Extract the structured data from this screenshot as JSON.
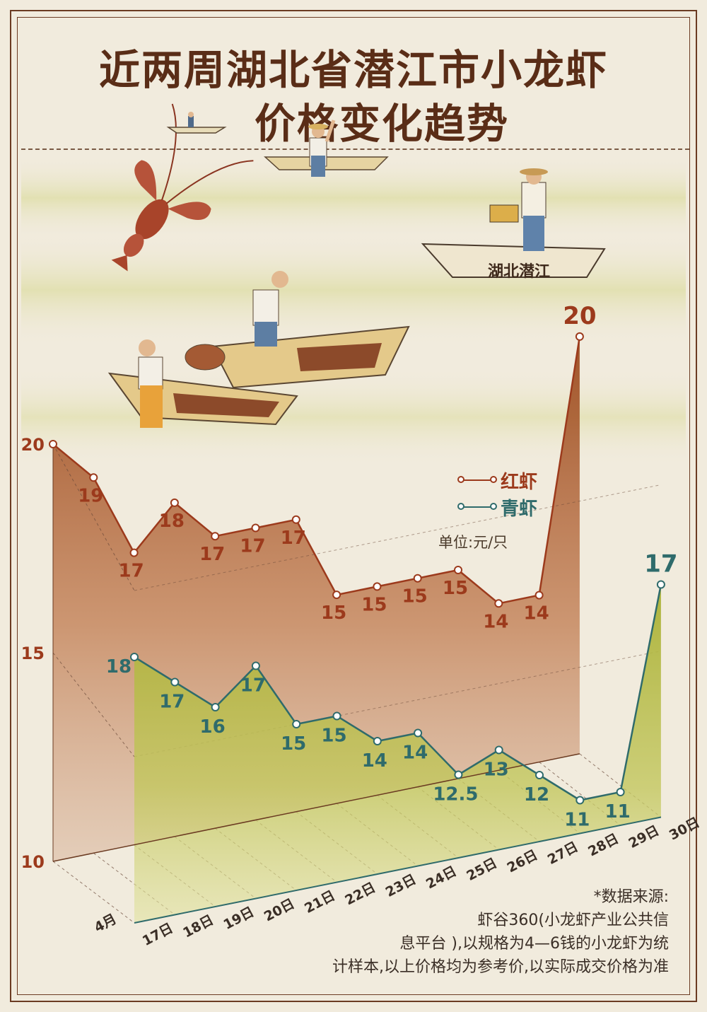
{
  "title_line1": "近两周湖北省潜江市小龙虾",
  "title_line2": "价格变化趋势",
  "boat_label": "湖北潜江",
  "legend": {
    "red_label": "红虾",
    "green_label": "青虾",
    "unit": "单位:元/只"
  },
  "source_lines": [
    "*数据来源:",
    "虾谷360(小龙虾产业公共信",
    "息平台 ),以规格为4—6钱的小龙虾为统",
    "计样本,以上价格均为参考价,以实际成交价格为准"
  ],
  "colors": {
    "red": "#9c3a1c",
    "green": "#2f6b6b",
    "title": "#5a2d17",
    "frame": "#6b3b22"
  },
  "chart_data": {
    "type": "area",
    "x": [
      "17日",
      "18日",
      "19日",
      "20日",
      "21日",
      "22日",
      "23日",
      "24日",
      "25日",
      "26日",
      "27日",
      "28日",
      "29日",
      "30日"
    ],
    "month_label": "4月",
    "y_ticks": [
      "10",
      "15",
      "20"
    ],
    "ylim": [
      10,
      20
    ],
    "series": [
      {
        "name": "红虾",
        "values": [
          20,
          19,
          17,
          18,
          17,
          17,
          17,
          15,
          15,
          15,
          15,
          14,
          14,
          20
        ],
        "labels": [
          "20",
          "19",
          "17",
          "18",
          "17",
          "17",
          "17",
          "15",
          "15",
          "15",
          "15",
          "14",
          "14",
          "20"
        ]
      },
      {
        "name": "青虾",
        "values": [
          18,
          17,
          16,
          17,
          15,
          15,
          14,
          14,
          12.5,
          13,
          12,
          11,
          11,
          17
        ],
        "labels": [
          "18",
          "17",
          "16",
          "17",
          "15",
          "15",
          "14",
          "14",
          "12.5",
          "13",
          "12",
          "11",
          "11",
          "17"
        ]
      }
    ]
  }
}
